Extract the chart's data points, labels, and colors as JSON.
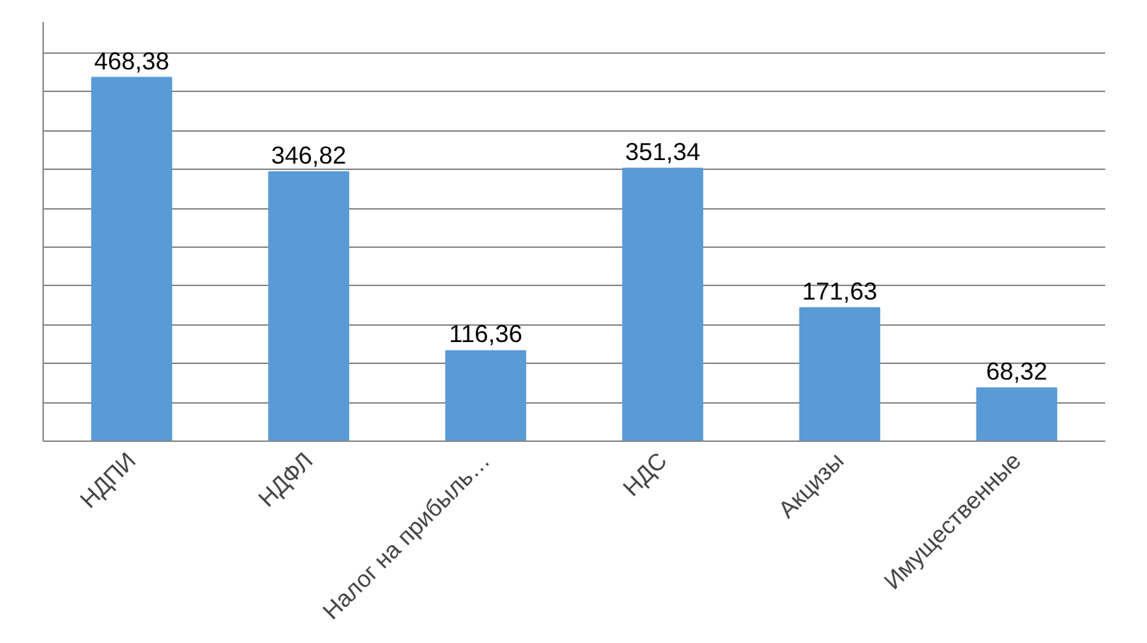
{
  "chart_data": {
    "type": "bar",
    "categories": [
      "НДПИ",
      "НДФЛ",
      "Налог на прибыль…",
      "НДС",
      "Акцизы",
      "Имущественные"
    ],
    "values": [
      468.38,
      346.82,
      116.36,
      351.34,
      171.63,
      68.32
    ],
    "color": "#5b9bd5",
    "data_labels": true,
    "value_labels": [
      "468,38",
      "346,82",
      "116,36",
      "351,34",
      "171,63",
      "68,32"
    ],
    "ylim": [
      0,
      540
    ],
    "yticks": [
      {
        "value": 0,
        "label": null
      },
      {
        "value": 50,
        "label": null
      },
      {
        "value": 100,
        "label": null
      },
      {
        "value": 150,
        "label": null
      },
      {
        "value": 200,
        "label": null
      },
      {
        "value": 250,
        "label": null
      },
      {
        "value": 300,
        "label": null
      },
      {
        "value": 350,
        "label": null
      },
      {
        "value": 400,
        "label": null
      },
      {
        "value": 450,
        "label": null
      },
      {
        "value": 500,
        "label": null
      }
    ],
    "grid": "y",
    "tick_labels": "x"
  }
}
